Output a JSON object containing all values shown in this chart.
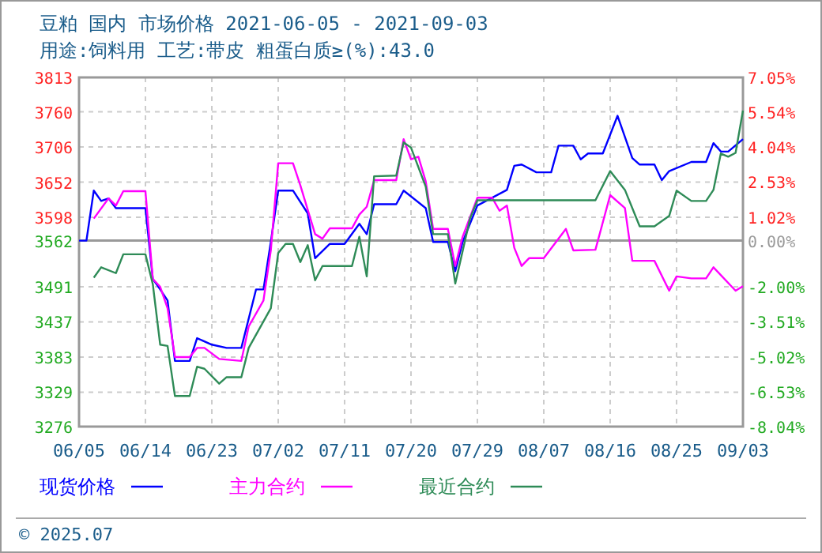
{
  "chart_data": {
    "type": "line",
    "title": "豆粕 国内 市场价格 2021-06-05 - 2021-09-03",
    "subtitle": "用途:饲料用 工艺:带皮 粗蛋白质≥(%):43.0",
    "xlim": [
      "2021-06-05",
      "2021-09-03"
    ],
    "xticks": [
      {
        "value": "2021-06-05",
        "label": "06/05"
      },
      {
        "value": "2021-06-14",
        "label": "06/14"
      },
      {
        "value": "2021-06-23",
        "label": "06/23"
      },
      {
        "value": "2021-07-02",
        "label": "07/02"
      },
      {
        "value": "2021-07-11",
        "label": "07/11"
      },
      {
        "value": "2021-07-20",
        "label": "07/20"
      },
      {
        "value": "2021-07-29",
        "label": "07/29"
      },
      {
        "value": "2021-08-07",
        "label": "08/07"
      },
      {
        "value": "2021-08-16",
        "label": "08/16"
      },
      {
        "value": "2021-08-25",
        "label": "08/25"
      },
      {
        "value": "2021-09-03",
        "label": "09/03"
      }
    ],
    "ylim": [
      3276,
      3813
    ],
    "yticks": [
      3276,
      3329,
      3383,
      3437,
      3491,
      3562,
      3598,
      3652,
      3706,
      3760,
      3813
    ],
    "y2lim": [
      -8.04,
      7.05
    ],
    "y2ticks": [
      {
        "value": -8.04,
        "label": "-8.04%"
      },
      {
        "value": -6.53,
        "label": "-6.53%"
      },
      {
        "value": -5.02,
        "label": "-5.02%"
      },
      {
        "value": -3.51,
        "label": "-3.51%"
      },
      {
        "value": -2.0,
        "label": "-2.00%"
      },
      {
        "value": 0,
        "label": "0.00%"
      },
      {
        "value": 1.02,
        "label": "1.02%"
      },
      {
        "value": 2.53,
        "label": "2.53%"
      },
      {
        "value": 4.04,
        "label": "4.04%"
      },
      {
        "value": 5.54,
        "label": "5.54%"
      },
      {
        "value": 7.05,
        "label": "7.05%"
      }
    ],
    "grid": true,
    "legend": "bottom",
    "marker": "none",
    "line_style": "solid",
    "ref_lines": [
      {
        "axis": "y2",
        "value": 0,
        "color": "#999999"
      }
    ],
    "annotations": [
      "© 2025.07"
    ],
    "series": [
      {
        "name": "现货价格",
        "color": "#0000ff",
        "x": [
          "2021-06-05",
          "2021-06-06",
          "2021-06-07",
          "2021-06-08",
          "2021-06-09",
          "2021-06-10",
          "2021-06-14",
          "2021-06-15",
          "2021-06-16",
          "2021-06-17",
          "2021-06-18",
          "2021-06-20",
          "2021-06-21",
          "2021-06-23",
          "2021-06-25",
          "2021-06-27",
          "2021-06-29",
          "2021-06-30",
          "2021-07-01",
          "2021-07-02",
          "2021-07-04",
          "2021-07-06",
          "2021-07-07",
          "2021-07-09",
          "2021-07-11",
          "2021-07-13",
          "2021-07-14",
          "2021-07-15",
          "2021-07-18",
          "2021-07-19",
          "2021-07-22",
          "2021-07-23",
          "2021-07-25",
          "2021-07-26",
          "2021-07-27",
          "2021-07-29",
          "2021-08-02",
          "2021-08-03",
          "2021-08-04",
          "2021-08-06",
          "2021-08-08",
          "2021-08-09",
          "2021-08-11",
          "2021-08-12",
          "2021-08-13",
          "2021-08-15",
          "2021-08-17",
          "2021-08-19",
          "2021-08-20",
          "2021-08-22",
          "2021-08-23",
          "2021-08-24",
          "2021-08-27",
          "2021-08-29",
          "2021-08-30",
          "2021-08-31",
          "2021-09-01",
          "2021-09-03"
        ],
        "values": [
          3562,
          3562,
          3639,
          3623,
          3627,
          3612,
          3612,
          3503,
          3487,
          3470,
          3377,
          3377,
          3412,
          3402,
          3397,
          3397,
          3487,
          3487,
          3560,
          3639,
          3639,
          3604,
          3535,
          3557,
          3557,
          3588,
          3572,
          3618,
          3618,
          3639,
          3612,
          3560,
          3560,
          3515,
          3560,
          3616,
          3640,
          3677,
          3679,
          3667,
          3667,
          3708,
          3708,
          3687,
          3696,
          3696,
          3754,
          3689,
          3679,
          3679,
          3655,
          3669,
          3683,
          3683,
          3712,
          3699,
          3699,
          3718
        ]
      },
      {
        "name": "主力合约",
        "color": "#ff00ff",
        "x": [
          "2021-06-07",
          "2021-06-09",
          "2021-06-10",
          "2021-06-11",
          "2021-06-14",
          "2021-06-15",
          "2021-06-16",
          "2021-06-17",
          "2021-06-18",
          "2021-06-20",
          "2021-06-21",
          "2021-06-22",
          "2021-06-24",
          "2021-06-27",
          "2021-06-28",
          "2021-06-30",
          "2021-07-01",
          "2021-07-02",
          "2021-07-04",
          "2021-07-05",
          "2021-07-07",
          "2021-07-08",
          "2021-07-09",
          "2021-07-12",
          "2021-07-13",
          "2021-07-14",
          "2021-07-15",
          "2021-07-18",
          "2021-07-19",
          "2021-07-20",
          "2021-07-21",
          "2021-07-22",
          "2021-07-23",
          "2021-07-25",
          "2021-07-26",
          "2021-07-27",
          "2021-07-29",
          "2021-07-31",
          "2021-08-01",
          "2021-08-02",
          "2021-08-03",
          "2021-08-04",
          "2021-08-05",
          "2021-08-07",
          "2021-08-10",
          "2021-08-11",
          "2021-08-14",
          "2021-08-16",
          "2021-08-18",
          "2021-08-19",
          "2021-08-22",
          "2021-08-24",
          "2021-08-25",
          "2021-08-27",
          "2021-08-29",
          "2021-08-30",
          "2021-09-02",
          "2021-09-03"
        ],
        "values": [
          3596,
          3627,
          3616,
          3638,
          3638,
          3503,
          3491,
          3458,
          3383,
          3383,
          3397,
          3397,
          3380,
          3377,
          3430,
          3470,
          3547,
          3681,
          3681,
          3647,
          3572,
          3565,
          3581,
          3581,
          3602,
          3614,
          3655,
          3655,
          3718,
          3687,
          3691,
          3653,
          3580,
          3580,
          3523,
          3568,
          3628,
          3628,
          3608,
          3616,
          3551,
          3523,
          3535,
          3535,
          3580,
          3547,
          3548,
          3632,
          3612,
          3531,
          3531,
          3485,
          3507,
          3504,
          3504,
          3521,
          3485,
          3492
        ]
      },
      {
        "name": "最近合约",
        "color": "#2e8b57",
        "x": [
          "2021-06-07",
          "2021-06-08",
          "2021-06-10",
          "2021-06-11",
          "2021-06-14",
          "2021-06-15",
          "2021-06-16",
          "2021-06-17",
          "2021-06-18",
          "2021-06-20",
          "2021-06-21",
          "2021-06-22",
          "2021-06-24",
          "2021-06-25",
          "2021-06-27",
          "2021-06-28",
          "2021-07-01",
          "2021-07-02",
          "2021-07-03",
          "2021-07-04",
          "2021-07-05",
          "2021-07-06",
          "2021-07-07",
          "2021-07-08",
          "2021-07-12",
          "2021-07-13",
          "2021-07-14",
          "2021-07-15",
          "2021-07-18",
          "2021-07-19",
          "2021-07-20",
          "2021-07-22",
          "2021-07-23",
          "2021-07-25",
          "2021-07-26",
          "2021-07-28",
          "2021-07-29",
          "2021-08-14",
          "2021-08-16",
          "2021-08-18",
          "2021-08-20",
          "2021-08-22",
          "2021-08-24",
          "2021-08-25",
          "2021-08-27",
          "2021-08-29",
          "2021-08-30",
          "2021-08-31",
          "2021-09-01",
          "2021-09-02",
          "2021-09-03"
        ],
        "values": [
          3505,
          3521,
          3512,
          3541,
          3541,
          3495,
          3402,
          3400,
          3323,
          3323,
          3368,
          3365,
          3342,
          3352,
          3352,
          3397,
          3458,
          3543,
          3557,
          3557,
          3529,
          3555,
          3501,
          3523,
          3523,
          3568,
          3507,
          3661,
          3662,
          3713,
          3705,
          3645,
          3572,
          3572,
          3496,
          3596,
          3624,
          3624,
          3669,
          3640,
          3584,
          3584,
          3600,
          3639,
          3623,
          3623,
          3640,
          3696,
          3691,
          3697,
          3762
        ]
      }
    ]
  }
}
